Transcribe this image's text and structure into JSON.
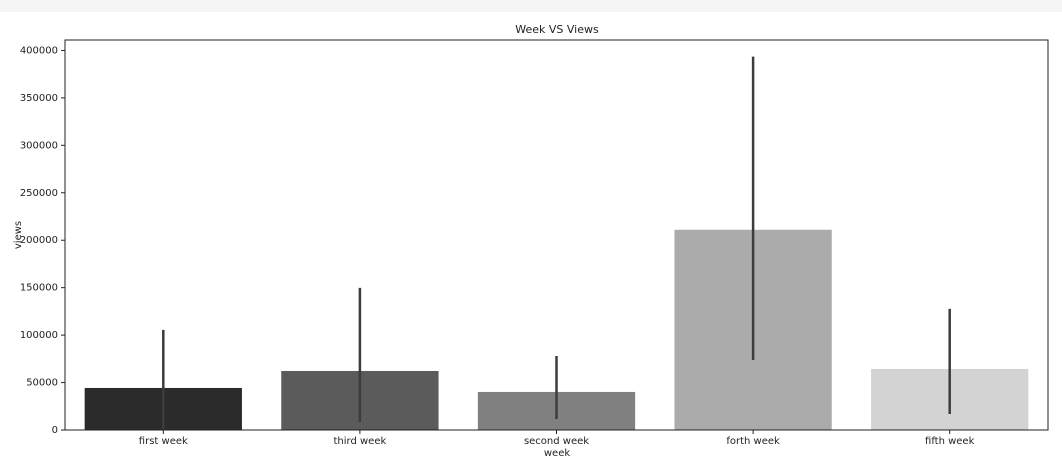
{
  "chart_data": {
    "type": "bar",
    "title": "Week VS Views",
    "x_label": "week",
    "y_label": "views",
    "categories": [
      "first week",
      "third week",
      "second week",
      "forth week",
      "fifth week"
    ],
    "values": [
      44300,
      62200,
      40100,
      211000,
      64300
    ],
    "ci_low": [
      500,
      8400,
      11600,
      73800,
      16900
    ],
    "ci_high": [
      105500,
      149800,
      78000,
      393500,
      127600
    ],
    "colors": [
      "#2b2b2b",
      "#5b5b5b",
      "#808080",
      "#ababab",
      "#d3d3d3"
    ],
    "ylim": [
      0,
      411000
    ],
    "yticks": [
      0,
      50000,
      100000,
      150000,
      200000,
      250000,
      300000,
      350000,
      400000
    ]
  }
}
